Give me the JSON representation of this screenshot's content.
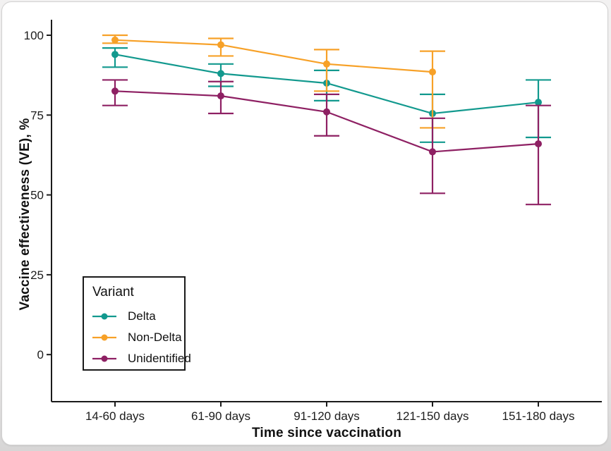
{
  "page": {
    "background_color": "#e9e8e8",
    "card_background_color": "#ffffff"
  },
  "chart_data": {
    "type": "line",
    "title": "",
    "xlabel": "Time since vaccination",
    "ylabel": "Vaccine effectiveness (VE), %",
    "categories": [
      "14-60 days",
      "61-90 days",
      "91-120 days",
      "121-150 days",
      "151-180 days"
    ],
    "y_ticks": [
      0,
      25,
      50,
      75,
      100
    ],
    "ylim": [
      0,
      105
    ],
    "grid": "off",
    "error_bars": true,
    "legend": {
      "title": "Variant",
      "position": "inside-bottom-left"
    },
    "axis_color": "#1a1a1a",
    "series": [
      {
        "name": "Delta",
        "color": "#12998E",
        "values": [
          94,
          88,
          85,
          75.5,
          79
        ],
        "ci_low": [
          90,
          84,
          79.5,
          66.5,
          68
        ],
        "ci_high": [
          96,
          91,
          89,
          81.5,
          86
        ]
      },
      {
        "name": "Non-Delta",
        "color": "#F7A128",
        "values": [
          98.5,
          97,
          91,
          88.5,
          null
        ],
        "ci_low": [
          97.5,
          93.5,
          82.5,
          71,
          null
        ],
        "ci_high": [
          100,
          99,
          95.5,
          95,
          null
        ]
      },
      {
        "name": "Unidentified",
        "color": "#8E2063",
        "values": [
          82.5,
          81,
          76,
          63.5,
          66
        ],
        "ci_low": [
          78,
          75.5,
          68.5,
          50.5,
          47
        ],
        "ci_high": [
          86,
          85.5,
          81.5,
          74,
          78
        ]
      }
    ]
  }
}
